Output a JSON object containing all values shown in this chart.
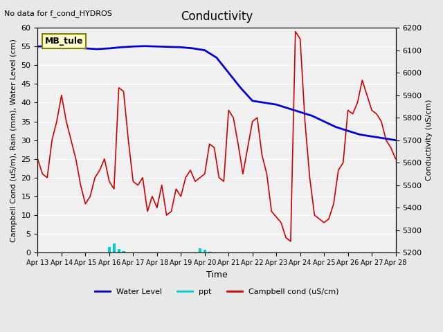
{
  "title": "Conductivity",
  "top_left_text": "No data for f_cond_HYDROS",
  "box_label": "MB_tule",
  "xlabel": "Time",
  "ylabel_left": "Campbell Cond (uS/m), Rain (mm), Water Level (cm)",
  "ylabel_right": "Conductivity (uS/cm)",
  "xlim_start": 0,
  "xlim_end": 15,
  "ylim_left": [
    0,
    60
  ],
  "ylim_right": [
    5200,
    6200
  ],
  "xtick_labels": [
    "Apr 13",
    "Apr 14",
    "Apr 15",
    "Apr 16",
    "Apr 17",
    "Apr 18",
    "Apr 19",
    "Apr 20",
    "Apr 21",
    "Apr 22",
    "Apr 23",
    "Apr 24",
    "Apr 25",
    "Apr 26",
    "Apr 27",
    "Apr 28"
  ],
  "background_color": "#e8e8e8",
  "plot_bg_color": "#f0f0f0",
  "water_level_color": "#0000cc",
  "ppt_color": "#00cccc",
  "campbell_color": "#cc0000",
  "water_level_x": [
    0,
    0.5,
    1.0,
    1.5,
    2.0,
    2.5,
    3.0,
    3.5,
    4.0,
    4.5,
    5.0,
    5.5,
    6.0,
    6.5,
    7.0,
    7.5,
    8.0,
    8.5,
    9.0,
    9.5,
    10.0,
    10.5,
    11.0,
    11.5,
    12.0,
    12.5,
    13.0,
    13.5,
    14.0,
    14.5,
    15.0
  ],
  "water_level_y": [
    55.0,
    55.1,
    55.0,
    54.8,
    54.5,
    54.3,
    54.5,
    54.8,
    55.0,
    55.1,
    55.0,
    54.9,
    54.8,
    54.5,
    54.0,
    52.0,
    48.0,
    44.0,
    40.5,
    40.0,
    39.5,
    38.5,
    37.5,
    36.5,
    35.0,
    33.5,
    32.5,
    31.5,
    31.0,
    30.5,
    30.0
  ],
  "ppt_x": [
    3.0,
    3.2,
    3.4,
    3.6,
    6.8,
    7.0,
    7.2
  ],
  "ppt_y": [
    1.5,
    2.5,
    1.0,
    0.5,
    1.2,
    0.8,
    0.3
  ],
  "campbell_x": [
    0,
    0.2,
    0.4,
    0.6,
    0.8,
    1.0,
    1.2,
    1.4,
    1.6,
    1.8,
    2.0,
    2.2,
    2.4,
    2.6,
    2.8,
    3.0,
    3.2,
    3.4,
    3.6,
    3.8,
    4.0,
    4.2,
    4.4,
    4.6,
    4.8,
    5.0,
    5.2,
    5.4,
    5.6,
    5.8,
    6.0,
    6.2,
    6.4,
    6.6,
    6.8,
    7.0,
    7.2,
    7.4,
    7.6,
    7.8,
    8.0,
    8.2,
    8.4,
    8.6,
    8.8,
    9.0,
    9.2,
    9.4,
    9.6,
    9.8,
    10.0,
    10.2,
    10.4,
    10.6,
    10.8,
    11.0,
    11.2,
    11.4,
    11.6,
    11.8,
    12.0,
    12.2,
    12.4,
    12.6,
    12.8,
    13.0,
    13.2,
    13.4,
    13.6,
    13.8,
    14.0,
    14.2,
    14.4,
    14.6,
    14.8,
    15.0
  ],
  "campbell_y": [
    25,
    21,
    20,
    30,
    35,
    42,
    35,
    30,
    25,
    18,
    13,
    15,
    20,
    22,
    25,
    19,
    17,
    44,
    43,
    30,
    19,
    18,
    20,
    11,
    15,
    12,
    18,
    10,
    11,
    17,
    15,
    20,
    22,
    19,
    20,
    21,
    29,
    28,
    20,
    19,
    38,
    36,
    29,
    21,
    28,
    35,
    36,
    26,
    21,
    11,
    9.5,
    8,
    4,
    3,
    59,
    57,
    35,
    20,
    10,
    9,
    8,
    9,
    13,
    22,
    24,
    38,
    37,
    40,
    46,
    42,
    38,
    37,
    35,
    30,
    28,
    25
  ]
}
